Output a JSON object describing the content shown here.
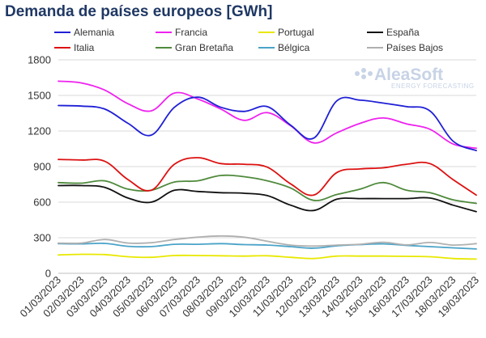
{
  "chart_data": {
    "type": "line",
    "title": "Demanda de países europeos [GWh]",
    "xlabel": "",
    "ylabel": "",
    "ylim": [
      0,
      1800
    ],
    "yticks": [
      0,
      300,
      600,
      900,
      1200,
      1500,
      1800
    ],
    "grid": true,
    "legend_position": "top",
    "x": [
      "01/03/2023",
      "02/03/2023",
      "03/03/2023",
      "04/03/2023",
      "05/03/2023",
      "06/03/2023",
      "07/03/2023",
      "08/03/2023",
      "09/03/2023",
      "10/03/2023",
      "11/03/2023",
      "12/03/2023",
      "13/03/2023",
      "14/03/2023",
      "15/03/2023",
      "16/03/2023",
      "17/03/2023",
      "18/03/2023",
      "19/03/2023"
    ],
    "series": [
      {
        "name": "Alemania",
        "color": "#1f1fd6",
        "values": [
          1415,
          1410,
          1385,
          1265,
          1165,
          1400,
          1485,
          1400,
          1365,
          1405,
          1250,
          1140,
          1455,
          1460,
          1435,
          1405,
          1370,
          1115,
          1035
        ]
      },
      {
        "name": "Francia",
        "color": "#ee22ee",
        "values": [
          1620,
          1605,
          1545,
          1430,
          1370,
          1520,
          1470,
          1385,
          1290,
          1355,
          1245,
          1100,
          1185,
          1265,
          1310,
          1260,
          1215,
          1090,
          1055
        ]
      },
      {
        "name": "Portugal",
        "color": "#e8e800",
        "values": [
          155,
          160,
          158,
          140,
          135,
          150,
          150,
          148,
          145,
          148,
          135,
          125,
          145,
          145,
          145,
          143,
          140,
          125,
          120
        ]
      },
      {
        "name": "España",
        "color": "#111111",
        "values": [
          740,
          740,
          725,
          635,
          600,
          700,
          690,
          680,
          675,
          655,
          575,
          530,
          625,
          630,
          630,
          630,
          635,
          575,
          520
        ]
      },
      {
        "name": "Italia",
        "color": "#dd1111",
        "values": [
          960,
          955,
          945,
          790,
          700,
          920,
          975,
          925,
          920,
          895,
          755,
          660,
          850,
          880,
          890,
          920,
          925,
          790,
          660
        ]
      },
      {
        "name": "Gran Bretaña",
        "color": "#4f8a3c",
        "values": [
          765,
          760,
          780,
          710,
          700,
          770,
          780,
          825,
          815,
          780,
          720,
          615,
          665,
          710,
          765,
          700,
          680,
          620,
          590
        ]
      },
      {
        "name": "Bélgica",
        "color": "#4aa3c8",
        "values": [
          250,
          248,
          252,
          228,
          225,
          245,
          245,
          250,
          242,
          238,
          225,
          212,
          232,
          242,
          248,
          235,
          225,
          215,
          205
        ]
      },
      {
        "name": "Países Bajos",
        "color": "#b0b0b0",
        "values": [
          255,
          255,
          285,
          255,
          258,
          285,
          305,
          315,
          305,
          270,
          238,
          230,
          238,
          245,
          262,
          240,
          260,
          238,
          250
        ]
      }
    ]
  },
  "logo": {
    "name": "AleaSoft",
    "tagline": "ENERGY FORECASTING"
  }
}
